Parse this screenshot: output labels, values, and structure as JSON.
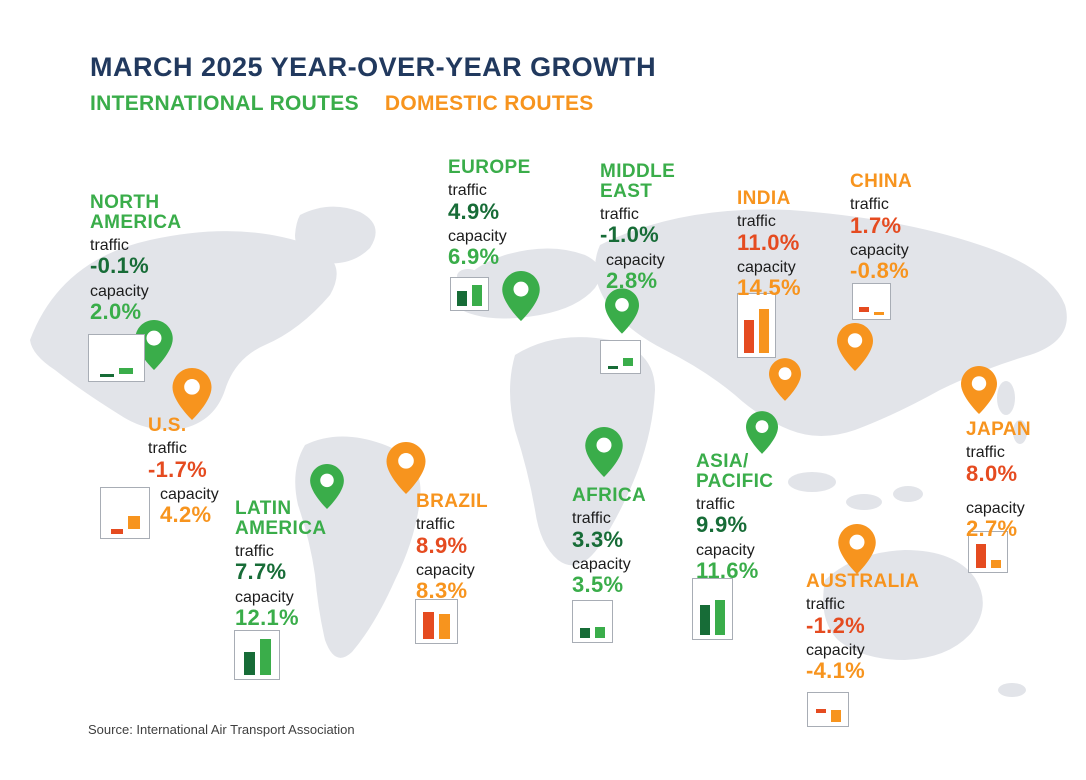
{
  "header": {
    "title": "MARCH 2025 YEAR-OVER-YEAR GROWTH",
    "legend_international": "INTERNATIONAL ROUTES",
    "legend_domestic": "DOMESTIC ROUTES"
  },
  "labels": {
    "traffic": "traffic",
    "capacity": "capacity"
  },
  "source": "Source: International Air Transport Association",
  "colors": {
    "navy": "#21395e",
    "green": "#3aad4a",
    "dark_green": "#176c37",
    "orange": "#f7941e",
    "red_orange": "#e54b20",
    "map_gray": "#e2e4e9",
    "box_border": "#a8adb5",
    "label_ink": "#1c1c1c",
    "source_gray": "#3f3f3f"
  },
  "regions": [
    {
      "name": "NORTH AMERICA",
      "name_lines": [
        "NORTH",
        "AMERICA"
      ],
      "route_type": "international",
      "traffic": "-0.1%",
      "capacity": "2.0%",
      "traffic_value": -0.1,
      "capacity_value": 2.0
    },
    {
      "name": "U.S.",
      "name_lines": [
        "U.S."
      ],
      "route_type": "domestic",
      "traffic": "-1.7%",
      "capacity": "4.2%",
      "traffic_value": -1.7,
      "capacity_value": 4.2
    },
    {
      "name": "LATIN AMERICA",
      "name_lines": [
        "LATIN",
        "AMERICA"
      ],
      "route_type": "international",
      "traffic": "7.7%",
      "capacity": "12.1%",
      "traffic_value": 7.7,
      "capacity_value": 12.1
    },
    {
      "name": "BRAZIL",
      "name_lines": [
        "BRAZIL"
      ],
      "route_type": "domestic",
      "traffic": "8.9%",
      "capacity": "8.3%",
      "traffic_value": 8.9,
      "capacity_value": 8.3
    },
    {
      "name": "EUROPE",
      "name_lines": [
        "EUROPE"
      ],
      "route_type": "international",
      "traffic": "4.9%",
      "capacity": "6.9%",
      "traffic_value": 4.9,
      "capacity_value": 6.9
    },
    {
      "name": "MIDDLE EAST",
      "name_lines": [
        "MIDDLE",
        "EAST"
      ],
      "route_type": "international",
      "traffic": "-1.0%",
      "capacity": "2.8%",
      "traffic_value": -1.0,
      "capacity_value": 2.8
    },
    {
      "name": "AFRICA",
      "name_lines": [
        "AFRICA"
      ],
      "route_type": "international",
      "traffic": "3.3%",
      "capacity": "3.5%",
      "traffic_value": 3.3,
      "capacity_value": 3.5
    },
    {
      "name": "ASIA/PACIFIC",
      "name_lines": [
        "ASIA/",
        "PACIFIC"
      ],
      "route_type": "international",
      "traffic": "9.9%",
      "capacity": "11.6%",
      "traffic_value": 9.9,
      "capacity_value": 11.6
    },
    {
      "name": "INDIA",
      "name_lines": [
        "INDIA"
      ],
      "route_type": "domestic",
      "traffic": "11.0%",
      "capacity": "14.5%",
      "traffic_value": 11.0,
      "capacity_value": 14.5
    },
    {
      "name": "CHINA",
      "name_lines": [
        "CHINA"
      ],
      "route_type": "domestic",
      "traffic": "1.7%",
      "capacity": "-0.8%",
      "traffic_value": 1.7,
      "capacity_value": -0.8
    },
    {
      "name": "AUSTRALIA",
      "name_lines": [
        "AUSTRALIA"
      ],
      "route_type": "domestic",
      "traffic": "-1.2%",
      "capacity": "-4.1%",
      "traffic_value": -1.2,
      "capacity_value": -4.1
    },
    {
      "name": "JAPAN",
      "name_lines": [
        "JAPAN"
      ],
      "route_type": "domestic",
      "traffic": "8.0%",
      "capacity": "2.7%",
      "traffic_value": 8.0,
      "capacity_value": 2.7
    }
  ],
  "chart_data": {
    "type": "bar",
    "title": "MARCH 2025 YEAR-OVER-YEAR GROWTH",
    "subtitle_legend": [
      "INTERNATIONAL ROUTES",
      "DOMESTIC ROUTES"
    ],
    "unit": "%",
    "categories": [
      "NORTH AMERICA",
      "U.S.",
      "LATIN AMERICA",
      "BRAZIL",
      "EUROPE",
      "MIDDLE EAST",
      "AFRICA",
      "ASIA/PACIFIC",
      "INDIA",
      "CHINA",
      "AUSTRALIA",
      "JAPAN"
    ],
    "route_types": [
      "international",
      "domestic",
      "international",
      "domestic",
      "international",
      "international",
      "international",
      "international",
      "domestic",
      "domestic",
      "domestic",
      "domestic"
    ],
    "series": [
      {
        "name": "traffic",
        "values": [
          -0.1,
          -1.7,
          7.7,
          8.9,
          4.9,
          -1.0,
          3.3,
          9.9,
          11.0,
          1.7,
          -1.2,
          8.0
        ]
      },
      {
        "name": "capacity",
        "values": [
          2.0,
          4.2,
          12.1,
          8.3,
          6.9,
          2.8,
          3.5,
          11.6,
          14.5,
          -0.8,
          -4.1,
          2.7
        ]
      }
    ],
    "source": "Source: International Air Transport Association"
  }
}
